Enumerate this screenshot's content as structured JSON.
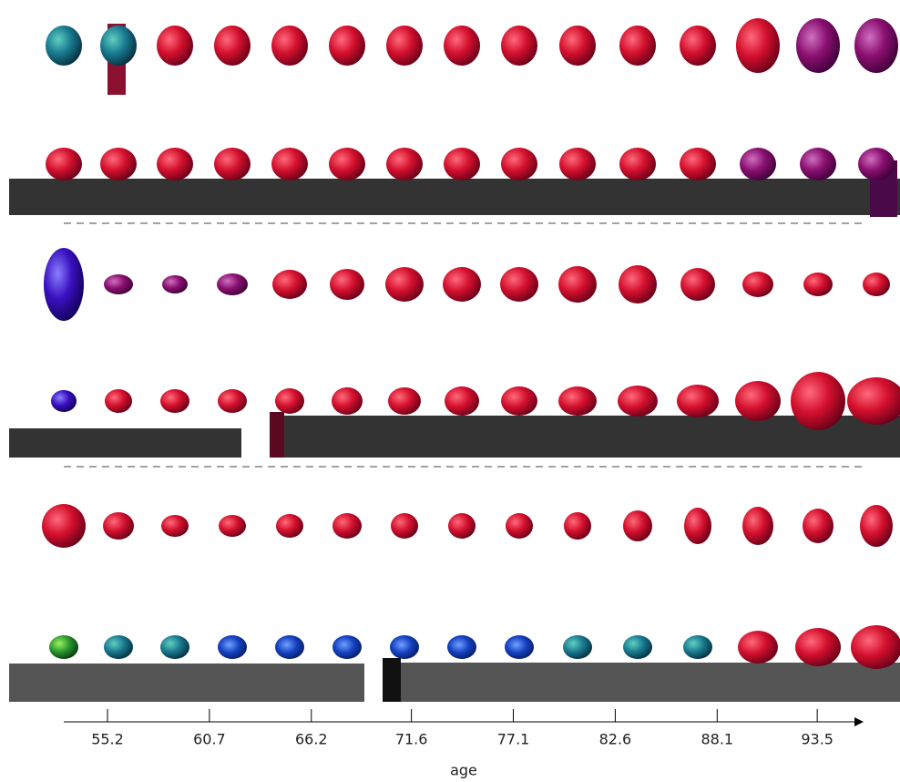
{
  "chart_data": {
    "type": "glyph",
    "x_label": "age",
    "xlim": [
      52.84,
      96.0
    ],
    "xticks": [
      55.2,
      60.7,
      66.2,
      71.6,
      77.1,
      82.6,
      88.1,
      93.5
    ]
  }
}
